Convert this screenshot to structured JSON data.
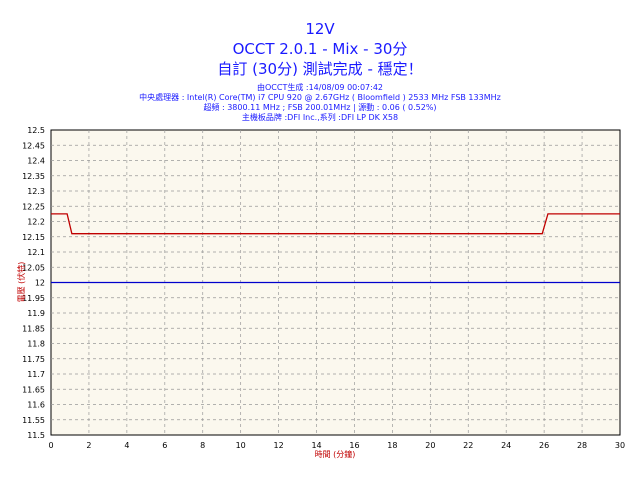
{
  "header": {
    "title": "12V",
    "subtitle": "OCCT 2.0.1 - Mix - 30分",
    "status": "自訂 (30分) 測試完成 - 穩定！",
    "generated": "由OCCT生成 :14/08/09 00:07:42",
    "cpu": "中央處理器 : Intel(R) Core(TM) i7 CPU 920 @ 2.67GHz ( Bloomfield ) 2533 MHz FSB 133MHz",
    "oc": "超頻 : 3800.11 MHz ; FSB 200.01MHz | 源動 : 0.06 ( 0.52%)",
    "board": "主機板品牌 :DFI Inc.,系列 :DFI LP DK X58"
  },
  "chart_data": {
    "type": "line",
    "xlabel": "時間 (分鐘)",
    "ylabel": "電壓 (伏特)",
    "xlim": [
      0,
      30
    ],
    "ylim": [
      11.5,
      12.5
    ],
    "x_ticks": [
      "0",
      "2",
      "4",
      "6",
      "8",
      "10",
      "12",
      "14",
      "16",
      "18",
      "20",
      "22",
      "24",
      "26",
      "28",
      "30"
    ],
    "y_ticks": [
      "12.5",
      "12.45",
      "12.4",
      "12.35",
      "12.3",
      "12.25",
      "12.2",
      "12.15",
      "12.1",
      "12.05",
      "12",
      "11.95",
      "11.9",
      "11.85",
      "11.8",
      "11.75",
      "11.7",
      "11.65",
      "11.6",
      "11.55",
      "11.5"
    ],
    "grid": true,
    "colors": {
      "measured": "#c00000",
      "nominal": "#0000cc"
    },
    "series": [
      {
        "x": [
          0,
          0.85,
          1.1,
          25.9,
          26.2,
          30
        ],
        "values": [
          12.225,
          12.225,
          12.16,
          12.16,
          12.225,
          12.225
        ]
      },
      {
        "x": [
          0,
          30
        ],
        "values": [
          12.0,
          12.0
        ]
      }
    ]
  }
}
